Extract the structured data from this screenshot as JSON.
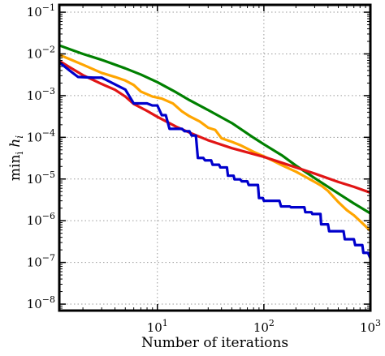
{
  "chart_data": {
    "type": "line",
    "xscale": "log",
    "yscale": "log",
    "xlabel": "Number of iterations",
    "ylabel": "min_i h_i",
    "ylabel_display": {
      "prefix": "min",
      "sub": "i",
      "var": "h",
      "var_sub": "i"
    },
    "xlim": [
      1.2,
      1000
    ],
    "ylim": [
      7e-09,
      0.15
    ],
    "grid": true,
    "x_ticks": [
      {
        "value": 10,
        "base": "10",
        "exp": "1"
      },
      {
        "value": 100,
        "base": "10",
        "exp": "2"
      },
      {
        "value": 1000,
        "base": "10",
        "exp": "3"
      }
    ],
    "y_ticks": [
      {
        "value": 1e-08,
        "base": "10",
        "exp": "−8"
      },
      {
        "value": 1e-07,
        "base": "10",
        "exp": "−7"
      },
      {
        "value": 1e-06,
        "base": "10",
        "exp": "−6"
      },
      {
        "value": 1e-05,
        "base": "10",
        "exp": "−5"
      },
      {
        "value": 0.0001,
        "base": "10",
        "exp": "−4"
      },
      {
        "value": 0.001,
        "base": "10",
        "exp": "−3"
      },
      {
        "value": 0.01,
        "base": "10",
        "exp": "−2"
      },
      {
        "value": 0.1,
        "base": "10",
        "exp": "−1"
      }
    ],
    "series": [
      {
        "color": "#008000",
        "step": false,
        "points": [
          [
            1.2,
            0.016
          ],
          [
            1.5,
            0.013
          ],
          [
            2,
            0.01
          ],
          [
            3,
            0.0072
          ],
          [
            5,
            0.0045
          ],
          [
            7,
            0.0032
          ],
          [
            10,
            0.0021
          ],
          [
            15,
            0.0012
          ],
          [
            20,
            0.00078
          ],
          [
            30,
            0.00045
          ],
          [
            50,
            0.00022
          ],
          [
            80,
            9.8e-05
          ],
          [
            100,
            6.8e-05
          ],
          [
            150,
            3.6e-05
          ],
          [
            200,
            2.1e-05
          ],
          [
            300,
            1.05e-05
          ],
          [
            500,
            4.5e-06
          ],
          [
            700,
            2.6e-06
          ],
          [
            1000,
            1.5e-06
          ]
        ]
      },
      {
        "color": "#ffa500",
        "step": false,
        "points": [
          [
            1.2,
            0.0095
          ],
          [
            1.5,
            0.0075
          ],
          [
            2,
            0.0055
          ],
          [
            3,
            0.0035
          ],
          [
            4,
            0.0028
          ],
          [
            5,
            0.0023
          ],
          [
            6,
            0.0018
          ],
          [
            7,
            0.00125
          ],
          [
            9,
            0.00095
          ],
          [
            11,
            0.00085
          ],
          [
            14,
            0.00065
          ],
          [
            17,
            0.00042
          ],
          [
            20,
            0.00032
          ],
          [
            25,
            0.00024
          ],
          [
            30,
            0.00017
          ],
          [
            35,
            0.00015
          ],
          [
            40,
            9.5e-05
          ],
          [
            50,
            7.8e-05
          ],
          [
            60,
            6.5e-05
          ],
          [
            80,
            4.5e-05
          ],
          [
            100,
            3.5e-05
          ],
          [
            120,
            2.8e-05
          ],
          [
            150,
            2.1e-05
          ],
          [
            200,
            1.5e-05
          ],
          [
            250,
            1.1e-05
          ],
          [
            300,
            8.5e-06
          ],
          [
            350,
            6.8e-06
          ],
          [
            400,
            5.2e-06
          ],
          [
            500,
            2.8e-06
          ],
          [
            600,
            1.8e-06
          ],
          [
            700,
            1.35e-06
          ],
          [
            850,
            8.5e-07
          ],
          [
            1000,
            5.7e-07
          ]
        ]
      },
      {
        "color": "#e11515",
        "step": false,
        "points": [
          [
            1.2,
            0.0068
          ],
          [
            1.5,
            0.0048
          ],
          [
            2,
            0.0031
          ],
          [
            3,
            0.0019
          ],
          [
            4,
            0.00138
          ],
          [
            5,
            0.00095
          ],
          [
            6,
            0.00063
          ],
          [
            8,
            0.00043
          ],
          [
            10,
            0.00031
          ],
          [
            15,
            0.00018
          ],
          [
            20,
            0.00013
          ],
          [
            30,
            8.5e-05
          ],
          [
            50,
            5.5e-05
          ],
          [
            100,
            3.4e-05
          ],
          [
            200,
            1.9e-05
          ],
          [
            300,
            1.35e-05
          ],
          [
            500,
            8.5e-06
          ],
          [
            700,
            6.5e-06
          ],
          [
            1000,
            4.7e-06
          ]
        ]
      },
      {
        "color": "#0000cc",
        "step": true,
        "points": [
          [
            1.2,
            0.0063
          ],
          [
            1.5,
            0.004
          ],
          [
            1.8,
            0.0028
          ],
          [
            2.5,
            0.0027
          ],
          [
            3,
            0.0027
          ],
          [
            4.5,
            0.0016
          ],
          [
            5,
            0.0014
          ],
          [
            6,
            0.00065
          ],
          [
            8,
            0.00065
          ],
          [
            9,
            0.00058
          ],
          [
            10,
            0.00058
          ],
          [
            11,
            0.00034
          ],
          [
            12,
            0.00034
          ],
          [
            13,
            0.00016
          ],
          [
            17,
            0.00016
          ],
          [
            18,
            0.00014
          ],
          [
            20,
            0.00014
          ],
          [
            21,
            0.00011
          ],
          [
            23,
            0.00011
          ],
          [
            24,
            3.2e-05
          ],
          [
            27,
            3.2e-05
          ],
          [
            28,
            2.8e-05
          ],
          [
            32,
            2.8e-05
          ],
          [
            33,
            2.2e-05
          ],
          [
            38,
            2.2e-05
          ],
          [
            39,
            1.9e-05
          ],
          [
            45,
            1.9e-05
          ],
          [
            46,
            1.2e-05
          ],
          [
            52,
            1.2e-05
          ],
          [
            53,
            9.8e-06
          ],
          [
            60,
            9.8e-06
          ],
          [
            62,
            8.8e-06
          ],
          [
            70,
            8.8e-06
          ],
          [
            72,
            7.2e-06
          ],
          [
            88,
            7.2e-06
          ],
          [
            90,
            3.5e-06
          ],
          [
            98,
            3.5e-06
          ],
          [
            100,
            3e-06
          ],
          [
            140,
            3e-06
          ],
          [
            145,
            2.2e-06
          ],
          [
            175,
            2.2e-06
          ],
          [
            180,
            2.1e-06
          ],
          [
            240,
            2.1e-06
          ],
          [
            245,
            1.6e-06
          ],
          [
            280,
            1.6e-06
          ],
          [
            285,
            1.45e-06
          ],
          [
            340,
            1.45e-06
          ],
          [
            345,
            8.2e-07
          ],
          [
            400,
            8.2e-07
          ],
          [
            410,
            5.6e-07
          ],
          [
            560,
            5.6e-07
          ],
          [
            575,
            3.6e-07
          ],
          [
            700,
            3.6e-07
          ],
          [
            720,
            2.6e-07
          ],
          [
            840,
            2.6e-07
          ],
          [
            860,
            1.7e-07
          ],
          [
            950,
            1.7e-07
          ],
          [
            1000,
            1.25e-07
          ]
        ]
      }
    ]
  }
}
